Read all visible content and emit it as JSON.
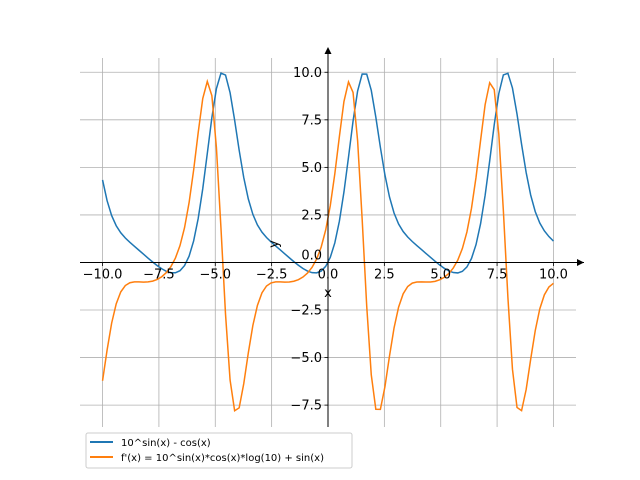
{
  "chart_data": {
    "type": "line",
    "title": "",
    "xlabel": "x",
    "ylabel": "y",
    "xlim": [
      -11,
      11
    ],
    "ylim": [
      -8.65,
      10.75
    ],
    "grid": true,
    "legend_position": "lower-left",
    "x_domain": [
      -10,
      10
    ],
    "samples": 100,
    "x_ticks": [
      "−10.0",
      "−7.5",
      "−5.0",
      "−2.5",
      "0.0",
      "2.5",
      "5.0",
      "7.5",
      "10.0"
    ],
    "x_tick_values": [
      -10,
      -7.5,
      -5,
      -2.5,
      0,
      2.5,
      5,
      7.5,
      10
    ],
    "y_ticks": [
      "−7.5",
      "−5.0",
      "−2.5",
      "0.0",
      "2.5",
      "5.0",
      "7.5",
      "10.0"
    ],
    "y_tick_values": [
      -7.5,
      -5,
      -2.5,
      0,
      2.5,
      5,
      7.5,
      10
    ],
    "series": [
      {
        "name": "10^sin(x) - cos(x)",
        "expression": "10^sin(x) - cos(x)",
        "color": "#1f77b4"
      },
      {
        "name": "f'(x) = 10^sin(x)*cos(x)*log(10) + sin(x)",
        "expression": "10^sin(x)*cos(x)*log(10) + sin(x)",
        "color": "#ff7f0e"
      }
    ]
  }
}
